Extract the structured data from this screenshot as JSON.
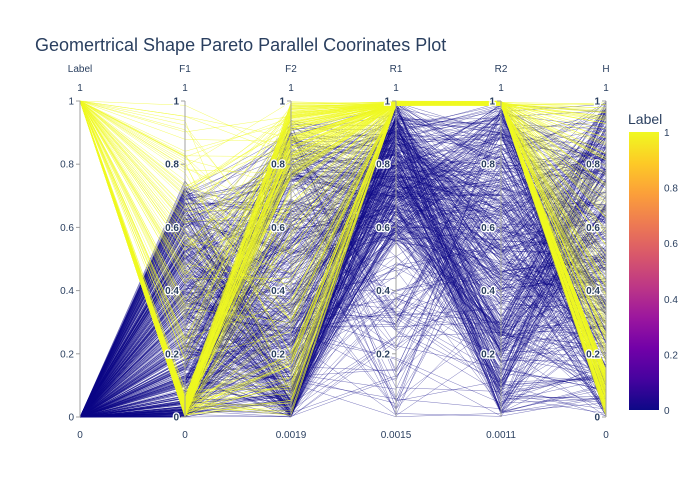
{
  "chart_data": {
    "type": "parallel_coordinates",
    "title": "Geomertrical Shape Pareto Parallel Coorinates Plot",
    "dimensions": [
      {
        "label": "Label",
        "range_top_label": "1",
        "range_bottom_label": "0",
        "ticks": [
          "1",
          "0.8",
          "0.6",
          "0.4",
          "0.2",
          "0"
        ],
        "tick_values": [
          1,
          0.8,
          0.6,
          0.4,
          0.2,
          0
        ]
      },
      {
        "label": "F1",
        "range_top_label": "1",
        "range_bottom_label": "0",
        "ticks": [
          "1",
          "0.8",
          "0.6",
          "0.4",
          "0.2",
          "0"
        ],
        "tick_values": [
          1,
          0.8,
          0.6,
          0.4,
          0.2,
          0
        ]
      },
      {
        "label": "F2",
        "range_top_label": "1",
        "range_bottom_label": "0.0019",
        "ticks": [
          "1",
          "0.8",
          "0.6",
          "0.4",
          "0.2"
        ],
        "tick_values": [
          1,
          0.8,
          0.6,
          0.4,
          0.2
        ]
      },
      {
        "label": "R1",
        "range_top_label": "1",
        "range_bottom_label": "0.0015",
        "ticks": [
          "1",
          "0.8",
          "0.6",
          "0.4",
          "0.2"
        ],
        "tick_values": [
          1,
          0.8,
          0.6,
          0.4,
          0.2
        ]
      },
      {
        "label": "R2",
        "range_top_label": "1",
        "range_bottom_label": "0.0011",
        "ticks": [
          "1",
          "0.8",
          "0.6",
          "0.4",
          "0.2"
        ],
        "tick_values": [
          1,
          0.8,
          0.6,
          0.4,
          0.2
        ]
      },
      {
        "label": "H",
        "range_top_label": "1",
        "range_bottom_label": "0",
        "ticks": [
          "1",
          "0.8",
          "0.6",
          "0.4",
          "0.2",
          "0"
        ],
        "tick_values": [
          1,
          0.8,
          0.6,
          0.4,
          0.2,
          0
        ]
      }
    ],
    "color_by": "Label",
    "colorscale": [
      "#0d0887",
      "#46039f",
      "#7201a8",
      "#9c179e",
      "#bd3786",
      "#d8576b",
      "#ed7953",
      "#fb9f3a",
      "#fdca26",
      "#f0f921"
    ],
    "colorbar": {
      "title": "Label",
      "ticks": [
        "1",
        "0.8",
        "0.6",
        "0.4",
        "0.2",
        "0"
      ],
      "tick_values": [
        1,
        0.8,
        0.6,
        0.4,
        0.2,
        0
      ]
    },
    "line_color_low": "#0d0887",
    "line_color_high": "#f0f921"
  }
}
